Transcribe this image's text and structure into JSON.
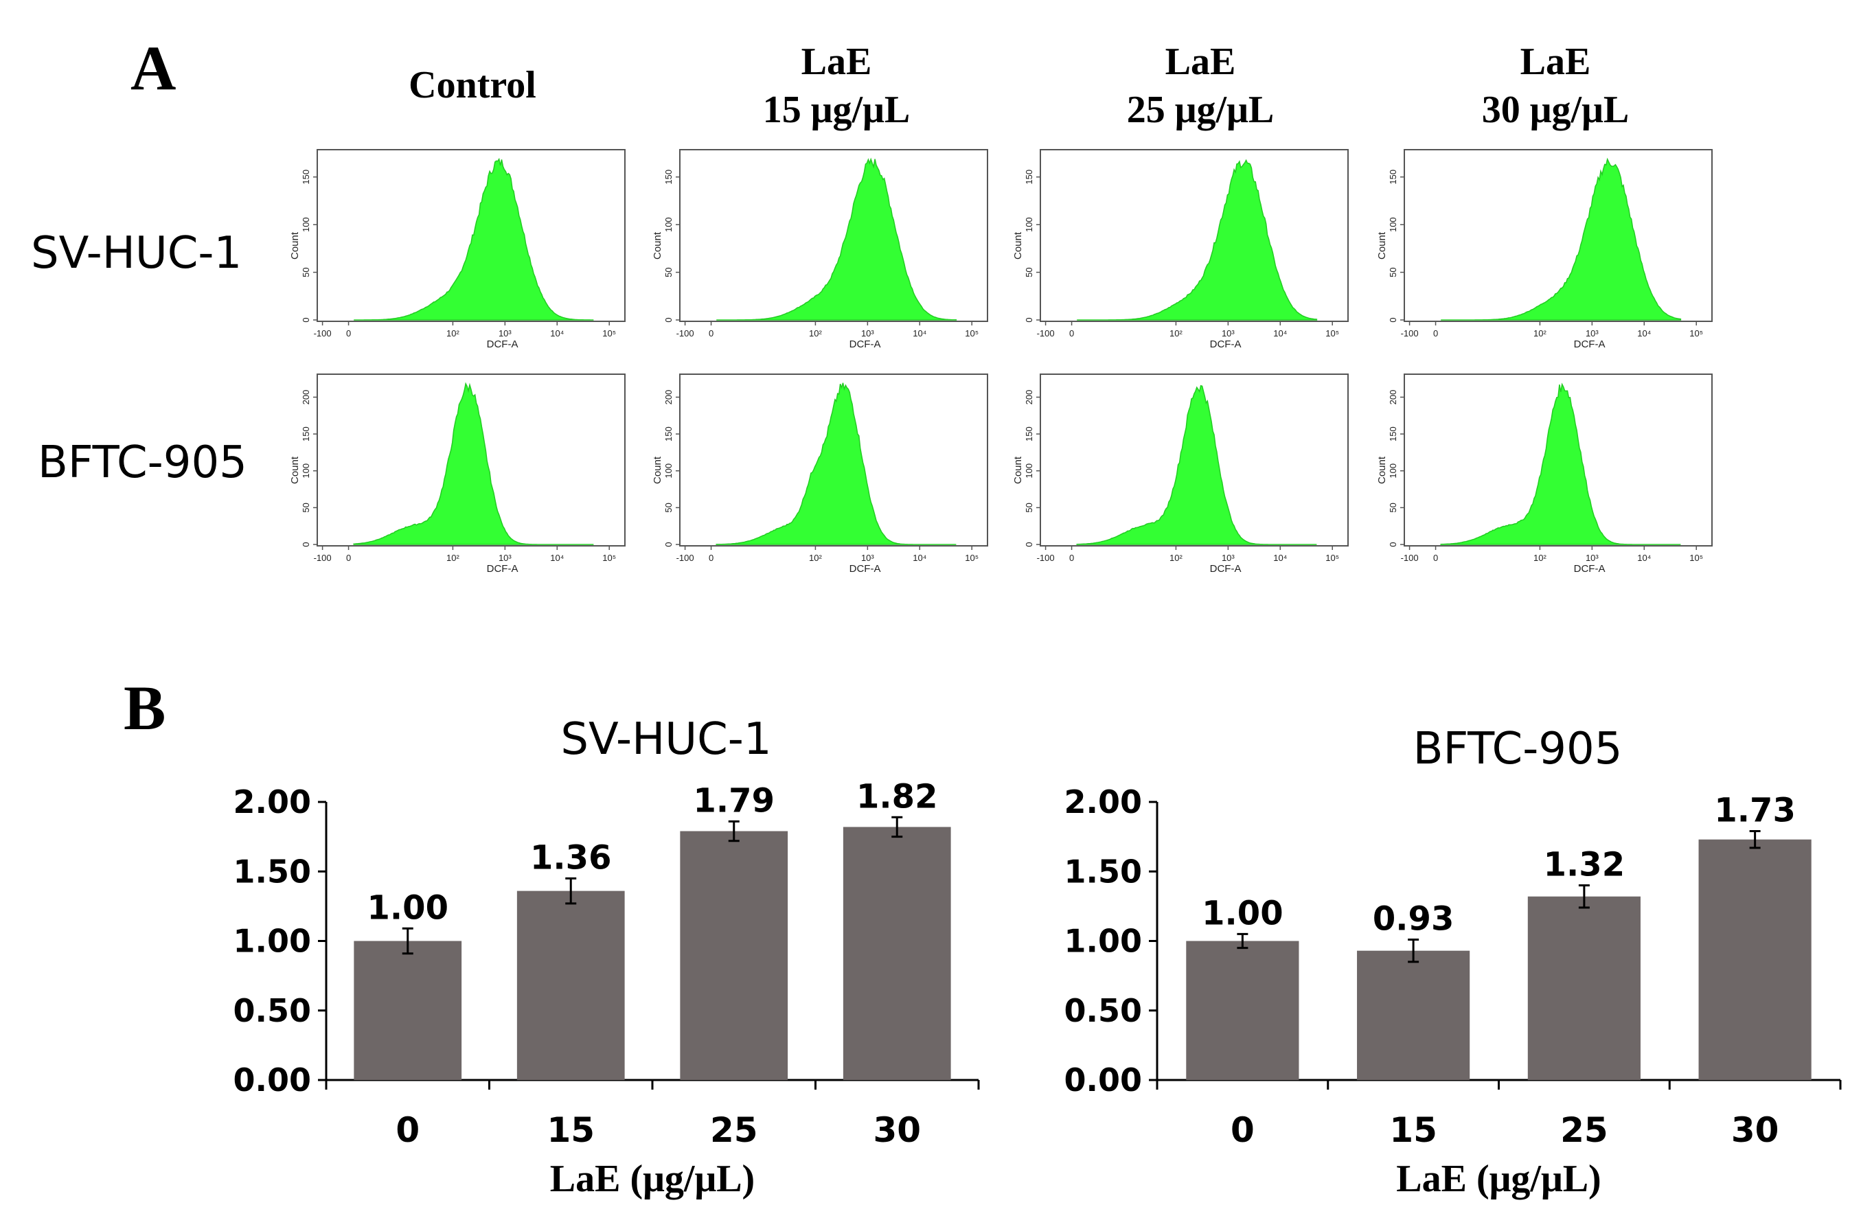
{
  "panels": {
    "a_label": "A",
    "b_label": "B"
  },
  "histograms": {
    "columns": [
      {
        "line1": "Control",
        "line2": ""
      },
      {
        "line1": "LaE",
        "line2": "15 μg/μL"
      },
      {
        "line1": "LaE",
        "line2": "25 μg/μL"
      },
      {
        "line1": "LaE",
        "line2": "30 μg/μL"
      }
    ],
    "rows": [
      "SV-HUC-1",
      "BFTC-905"
    ],
    "x_axis_label": "DCF-A",
    "y_axis_label": "Count",
    "x_ticks": [
      "-100",
      "0",
      "10²",
      "10³",
      "10⁴",
      "10⁵"
    ],
    "y_ticks_top": [
      "0",
      "50",
      "100",
      "150"
    ],
    "y_ticks_bottom": [
      "0",
      "50",
      "100",
      "150",
      "200"
    ],
    "fill_color": "#33ff33",
    "edge_color": "#22cc22",
    "peaks_log_position": [
      [
        2.9,
        3.1,
        3.3,
        3.35
      ],
      [
        2.3,
        2.55,
        2.45,
        2.45
      ]
    ]
  },
  "chart_data": [
    {
      "type": "bar",
      "title": "SV-HUC-1",
      "categories": [
        "0",
        "15",
        "25",
        "30"
      ],
      "values": [
        1.0,
        1.36,
        1.79,
        1.82
      ],
      "errors": [
        0.09,
        0.09,
        0.07,
        0.07
      ],
      "value_labels": [
        "1.00",
        "1.36",
        "1.79",
        "1.82"
      ],
      "xlabel": "LaE (μg/μL)",
      "ylabel": "",
      "ylim": [
        0,
        2
      ],
      "yticks": [
        "0.00",
        "0.50",
        "1.00",
        "1.50",
        "2.00"
      ],
      "bar_color": "#6e6767"
    },
    {
      "type": "bar",
      "title": "BFTC-905",
      "categories": [
        "0",
        "15",
        "25",
        "30"
      ],
      "values": [
        1.0,
        0.93,
        1.32,
        1.73
      ],
      "errors": [
        0.05,
        0.08,
        0.08,
        0.06
      ],
      "value_labels": [
        "1.00",
        "0.93",
        "1.32",
        "1.73"
      ],
      "xlabel": "LaE (μg/μL)",
      "ylabel": "",
      "ylim": [
        0,
        2
      ],
      "yticks": [
        "0.00",
        "0.50",
        "1.00",
        "1.50",
        "2.00"
      ],
      "bar_color": "#6e6767"
    }
  ]
}
